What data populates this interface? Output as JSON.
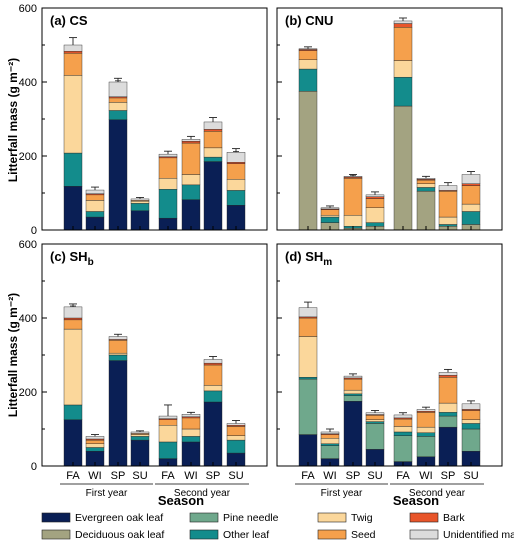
{
  "figure": {
    "y_axis_label": "Litterfall mass (g m⁻²)",
    "x_axis_label": "Season",
    "year_labels": [
      "First year",
      "Second year"
    ],
    "season_ticks": [
      "FA",
      "WI",
      "SP",
      "SU"
    ]
  },
  "legend": [
    {
      "name": "Evergreen oak leaf",
      "color": "#0a1f55"
    },
    {
      "name": "Deciduous oak leaf",
      "color": "#a3a381"
    },
    {
      "name": "Pine needle",
      "color": "#6fa88c"
    },
    {
      "name": "Other leaf",
      "color": "#138c8c"
    },
    {
      "name": "Twig",
      "color": "#fbd79b"
    },
    {
      "name": "Seed",
      "color": "#f5a04c"
    },
    {
      "name": "Bark",
      "color": "#e8552a"
    },
    {
      "name": "Unidentified material",
      "color": "#dcdcdc"
    }
  ],
  "chart_data": [
    {
      "type": "bar",
      "stacked": true,
      "title": "(a) CS",
      "categories": [
        "FA",
        "WI",
        "SP",
        "SU",
        "FA",
        "WI",
        "SP",
        "SU"
      ],
      "ylim": [
        0,
        600
      ],
      "yticks": [
        0,
        200,
        400,
        600
      ],
      "series": [
        {
          "name": "Evergreen oak leaf",
          "values": [
            118,
            35,
            298,
            52,
            32,
            82,
            185,
            67
          ]
        },
        {
          "name": "Deciduous oak leaf",
          "values": [
            0,
            0,
            0,
            0,
            0,
            0,
            0,
            0
          ]
        },
        {
          "name": "Pine needle",
          "values": [
            0,
            0,
            0,
            0,
            0,
            0,
            0,
            0
          ]
        },
        {
          "name": "Other leaf",
          "values": [
            90,
            15,
            25,
            20,
            78,
            40,
            12,
            40
          ]
        },
        {
          "name": "Twig",
          "values": [
            210,
            30,
            22,
            6,
            30,
            28,
            25,
            30
          ]
        },
        {
          "name": "Seed",
          "values": [
            60,
            15,
            12,
            2,
            55,
            85,
            45,
            42
          ]
        },
        {
          "name": "Bark",
          "values": [
            5,
            3,
            3,
            0,
            3,
            5,
            5,
            4
          ]
        },
        {
          "name": "Unidentified material",
          "values": [
            17,
            10,
            40,
            4,
            7,
            5,
            20,
            27
          ]
        }
      ],
      "error_bars": [
        20,
        8,
        10,
        4,
        8,
        8,
        12,
        10
      ]
    },
    {
      "type": "bar",
      "stacked": true,
      "title": "(b) CNU",
      "categories": [
        "FA",
        "WI",
        "SP",
        "SU",
        "FA",
        "WI",
        "SP",
        "SU"
      ],
      "ylim": [
        0,
        600
      ],
      "yticks": [
        0,
        200,
        400,
        600
      ],
      "series": [
        {
          "name": "Evergreen oak leaf",
          "values": [
            0,
            0,
            0,
            0,
            0,
            0,
            0,
            0
          ]
        },
        {
          "name": "Deciduous oak leaf",
          "values": [
            375,
            20,
            5,
            10,
            335,
            105,
            10,
            15
          ]
        },
        {
          "name": "Pine needle",
          "values": [
            0,
            0,
            0,
            0,
            0,
            0,
            0,
            0
          ]
        },
        {
          "name": "Other leaf",
          "values": [
            60,
            15,
            5,
            10,
            78,
            10,
            5,
            35
          ]
        },
        {
          "name": "Twig",
          "values": [
            25,
            5,
            30,
            40,
            45,
            10,
            20,
            20
          ]
        },
        {
          "name": "Seed",
          "values": [
            25,
            15,
            100,
            25,
            90,
            10,
            70,
            50
          ]
        },
        {
          "name": "Bark",
          "values": [
            3,
            2,
            3,
            5,
            10,
            2,
            2,
            5
          ]
        },
        {
          "name": "Unidentified material",
          "values": [
            2,
            3,
            2,
            5,
            7,
            3,
            13,
            25
          ]
        }
      ],
      "error_bars": [
        5,
        5,
        5,
        8,
        8,
        5,
        8,
        8
      ]
    },
    {
      "type": "bar",
      "stacked": true,
      "title": "(c) SHb",
      "title_main": "(c) SH",
      "title_sub": "b",
      "categories": [
        "FA",
        "WI",
        "SP",
        "SU",
        "FA",
        "WI",
        "SP",
        "SU"
      ],
      "ylim": [
        0,
        600
      ],
      "yticks": [
        0,
        200,
        400,
        600
      ],
      "series": [
        {
          "name": "Evergreen oak leaf",
          "values": [
            125,
            40,
            285,
            70,
            20,
            65,
            173,
            35
          ]
        },
        {
          "name": "Deciduous oak leaf",
          "values": [
            0,
            0,
            0,
            0,
            0,
            0,
            0,
            0
          ]
        },
        {
          "name": "Pine needle",
          "values": [
            0,
            0,
            0,
            0,
            0,
            0,
            0,
            0
          ]
        },
        {
          "name": "Other leaf",
          "values": [
            40,
            10,
            15,
            10,
            45,
            15,
            30,
            35
          ]
        },
        {
          "name": "Twig",
          "values": [
            205,
            10,
            5,
            5,
            45,
            20,
            15,
            12
          ]
        },
        {
          "name": "Seed",
          "values": [
            25,
            10,
            35,
            3,
            15,
            30,
            55,
            25
          ]
        },
        {
          "name": "Bark",
          "values": [
            5,
            3,
            2,
            0,
            3,
            3,
            5,
            3
          ]
        },
        {
          "name": "Unidentified material",
          "values": [
            30,
            7,
            8,
            4,
            7,
            7,
            10,
            5
          ]
        }
      ],
      "error_bars": [
        8,
        5,
        6,
        3,
        30,
        5,
        8,
        8
      ]
    },
    {
      "type": "bar",
      "stacked": true,
      "title": "(d) SHm",
      "title_main": "(d) SH",
      "title_sub": "m",
      "categories": [
        "FA",
        "WI",
        "SP",
        "SU",
        "FA",
        "WI",
        "SP",
        "SU"
      ],
      "ylim": [
        0,
        600
      ],
      "yticks": [
        0,
        200,
        400,
        600
      ],
      "series": [
        {
          "name": "Evergreen oak leaf",
          "values": [
            85,
            20,
            175,
            45,
            12,
            25,
            105,
            40
          ]
        },
        {
          "name": "Deciduous oak leaf",
          "values": [
            0,
            0,
            0,
            0,
            0,
            0,
            0,
            0
          ]
        },
        {
          "name": "Pine needle",
          "values": [
            150,
            35,
            15,
            70,
            70,
            55,
            30,
            60
          ]
        },
        {
          "name": "Other leaf",
          "values": [
            5,
            5,
            5,
            5,
            10,
            10,
            10,
            15
          ]
        },
        {
          "name": "Twig",
          "values": [
            110,
            15,
            10,
            5,
            15,
            15,
            25,
            10
          ]
        },
        {
          "name": "Seed",
          "values": [
            50,
            10,
            30,
            12,
            20,
            40,
            70,
            25
          ]
        },
        {
          "name": "Bark",
          "values": [
            3,
            2,
            3,
            2,
            3,
            3,
            5,
            3
          ]
        },
        {
          "name": "Unidentified material",
          "values": [
            25,
            5,
            5,
            5,
            8,
            5,
            8,
            15
          ]
        }
      ],
      "error_bars": [
        15,
        8,
        6,
        6,
        6,
        6,
        8,
        8
      ]
    }
  ]
}
